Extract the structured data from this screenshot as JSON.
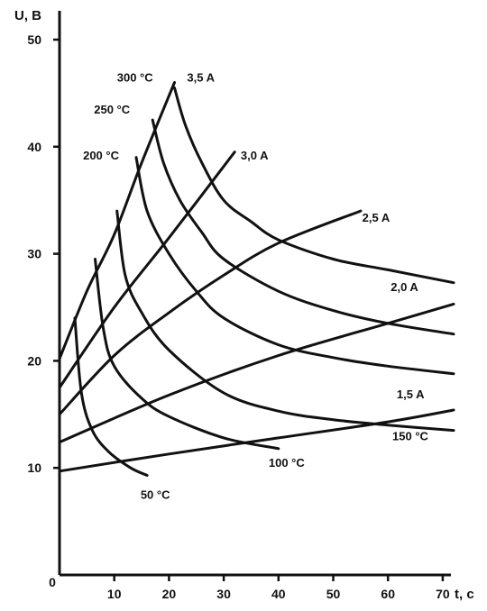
{
  "chart_data": {
    "type": "line",
    "title": "",
    "xlabel": "t, c",
    "ylabel": "U, B",
    "xlim": [
      0,
      75
    ],
    "ylim": [
      0,
      65
    ],
    "xticks": [
      "0",
      "10",
      "20",
      "30",
      "40",
      "50",
      "60",
      "70"
    ],
    "yticks": [
      "10",
      "20",
      "30",
      "40",
      "50"
    ],
    "grid": false,
    "line_color": "#111111",
    "series": [
      {
        "name": "1,5 A",
        "group": "current",
        "x": [
          0,
          20,
          40,
          60,
          72
        ],
        "y": [
          9.7,
          11.3,
          12.8,
          14.3,
          15.4
        ]
      },
      {
        "name": "2,0 A",
        "group": "current",
        "x": [
          0,
          20,
          40,
          60,
          72
        ],
        "y": [
          12.4,
          16.8,
          20.5,
          23.5,
          25.3
        ]
      },
      {
        "name": "2,5 A",
        "group": "current",
        "x": [
          0,
          10,
          20,
          30,
          40,
          55
        ],
        "y": [
          15.0,
          20.5,
          24.5,
          28.0,
          31.0,
          34.0
        ]
      },
      {
        "name": "3,0 A",
        "group": "current",
        "x": [
          0,
          10,
          20,
          32
        ],
        "y": [
          17.5,
          25.0,
          31.5,
          39.5
        ]
      },
      {
        "name": "3,5 A",
        "group": "current",
        "x": [
          0,
          5,
          10,
          15,
          21
        ],
        "y": [
          20.2,
          26.5,
          31.8,
          38.5,
          46.0
        ]
      },
      {
        "name": "50 °C",
        "group": "temperature",
        "x": [
          2.8,
          4,
          6,
          9,
          13,
          16
        ],
        "y": [
          24.0,
          17.0,
          13.5,
          11.5,
          10.0,
          9.3
        ]
      },
      {
        "name": "100 °C",
        "group": "temperature",
        "x": [
          6.5,
          8,
          10,
          15,
          20,
          30,
          40
        ],
        "y": [
          29.5,
          23.0,
          19.5,
          16.5,
          14.8,
          12.8,
          11.8
        ]
      },
      {
        "name": "150 °C",
        "group": "temperature",
        "x": [
          10.5,
          12,
          15,
          20,
          30,
          40,
          50,
          60,
          72
        ],
        "y": [
          34.0,
          28.0,
          24.5,
          21.0,
          17.0,
          15.3,
          14.5,
          14.0,
          13.5
        ]
      },
      {
        "name": "200 °C",
        "group": "temperature",
        "x": [
          14,
          16,
          20,
          25,
          30,
          40,
          50,
          60,
          72
        ],
        "y": [
          39.0,
          34.0,
          30.0,
          26.5,
          24.0,
          21.5,
          20.3,
          19.5,
          18.8
        ]
      },
      {
        "name": "250 °C",
        "group": "temperature",
        "x": [
          17,
          19,
          22,
          26,
          30,
          40,
          50,
          60,
          72
        ],
        "y": [
          42.5,
          38.5,
          35.0,
          32.0,
          29.5,
          26.5,
          24.7,
          23.5,
          22.5
        ]
      },
      {
        "name": "300 °C",
        "group": "temperature",
        "x": [
          21,
          23,
          26,
          30,
          35,
          40,
          50,
          60,
          72
        ],
        "y": [
          45.5,
          42.0,
          38.5,
          35.0,
          33.0,
          31.3,
          29.5,
          28.5,
          27.3
        ]
      }
    ],
    "labels": [
      {
        "text": "300 °C",
        "x": 10.5,
        "y": 46.1
      },
      {
        "text": "3,5 A",
        "x": 23.3,
        "y": 46.1
      },
      {
        "text": "250 °C",
        "x": 6.3,
        "y": 43.1
      },
      {
        "text": "200 °C",
        "x": 4.3,
        "y": 38.8
      },
      {
        "text": "3,0 A",
        "x": 33.1,
        "y": 38.8
      },
      {
        "text": "2,5 A",
        "x": 55.3,
        "y": 33.0
      },
      {
        "text": "2,0 A",
        "x": 60.5,
        "y": 26.5
      },
      {
        "text": "1,5 A",
        "x": 61.6,
        "y": 16.5
      },
      {
        "text": "150 °C",
        "x": 60.8,
        "y": 12.6
      },
      {
        "text": "100 °C",
        "x": 38.2,
        "y": 10.1
      },
      {
        "text": "50 °C",
        "x": 14.8,
        "y": 7.1
      }
    ]
  }
}
